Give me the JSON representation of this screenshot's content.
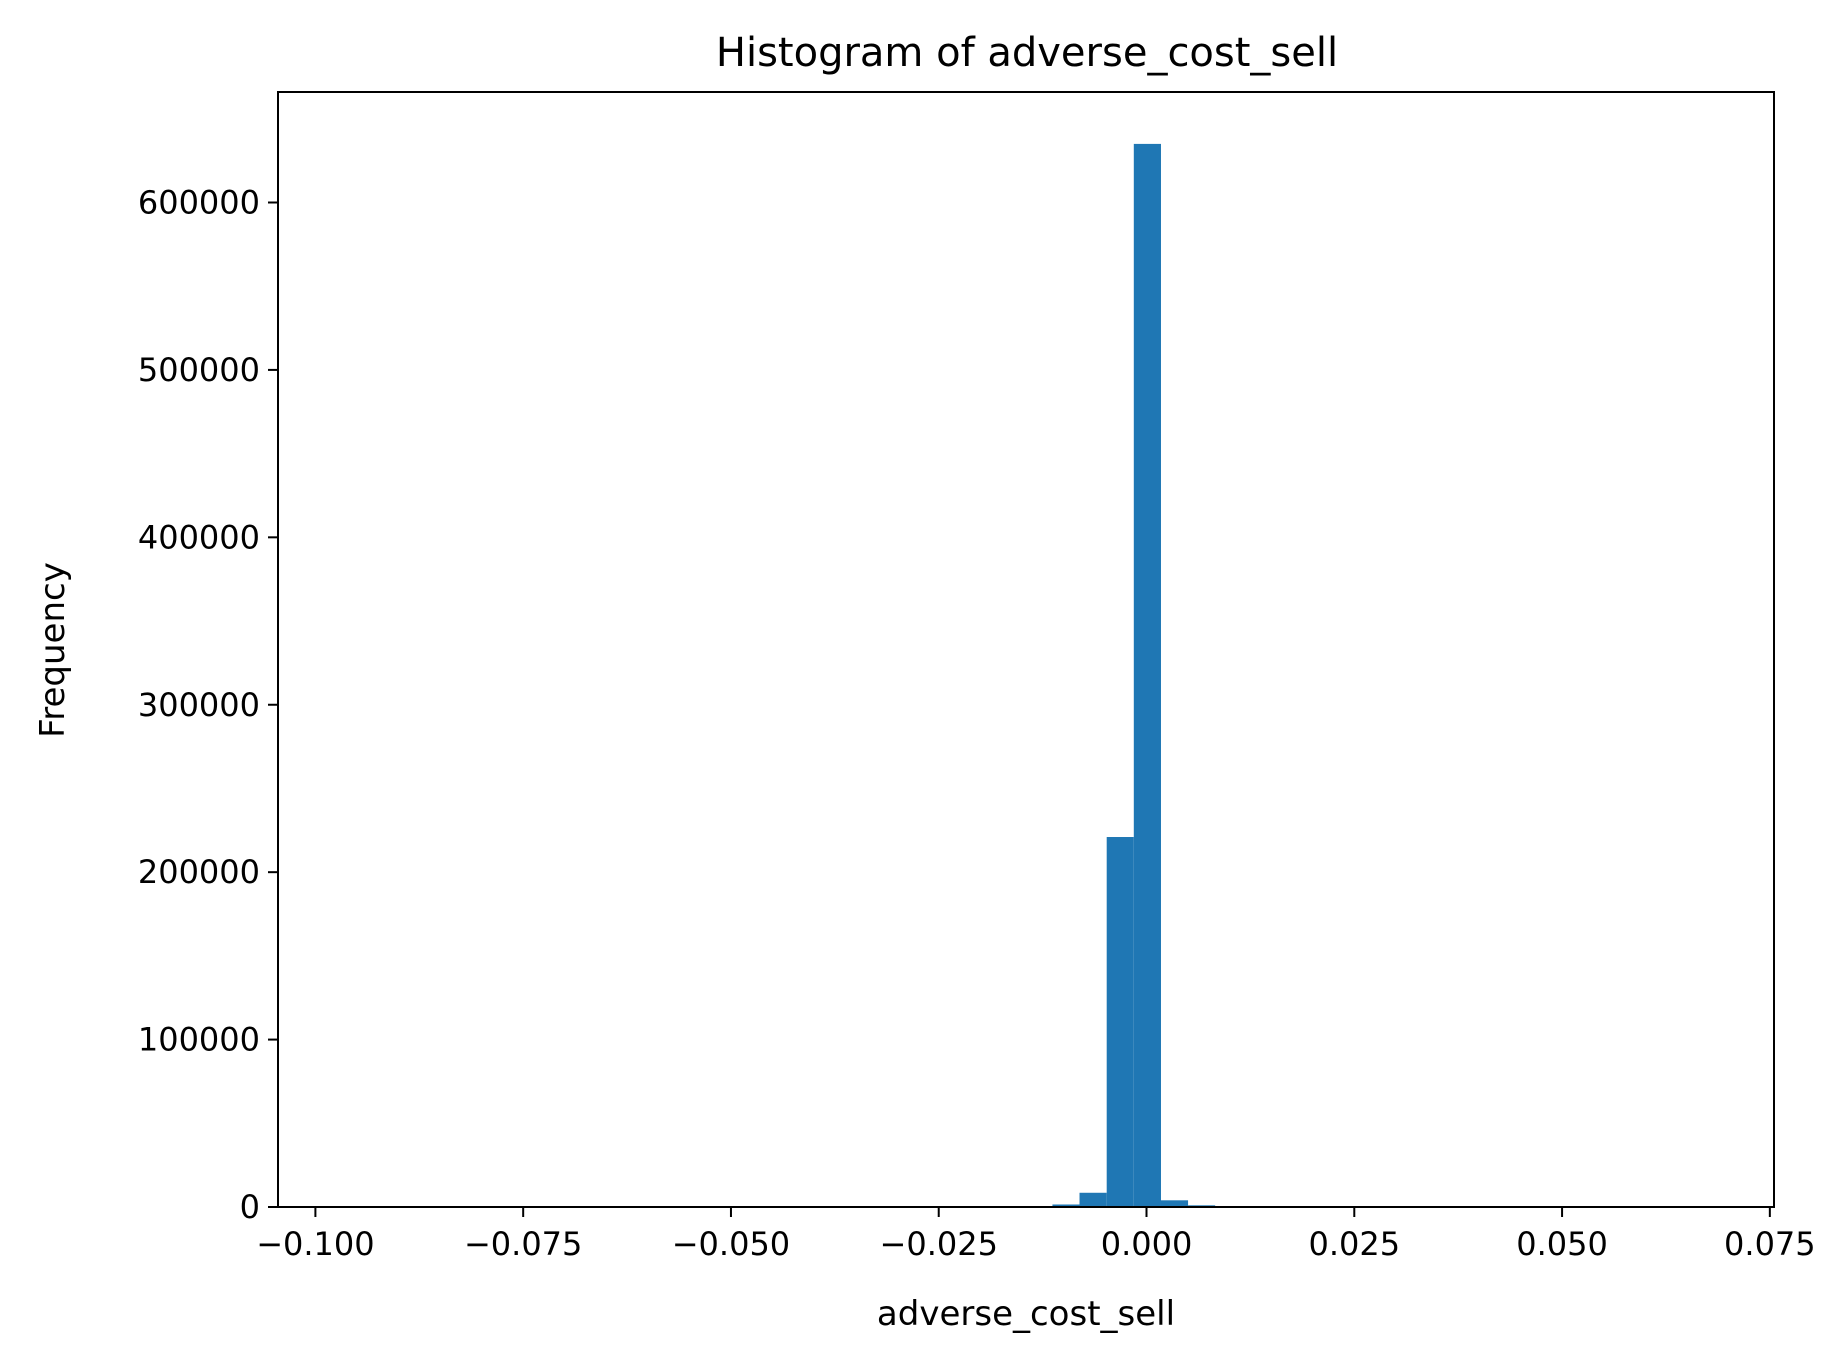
{
  "chart_data": {
    "type": "bar",
    "title": "Histogram of adverse_cost_sell",
    "xlabel": "adverse_cost_sell",
    "ylabel": "Frequency",
    "xlim": [
      -0.1045,
      0.0755
    ],
    "ylim": [
      0,
      666000
    ],
    "xticks": [
      -0.1,
      -0.075,
      -0.05,
      -0.025,
      0.0,
      0.025,
      0.05,
      0.075
    ],
    "xtick_labels": [
      "−0.100",
      "−0.075",
      "−0.050",
      "−0.025",
      "0.000",
      "0.025",
      "0.050",
      "0.075"
    ],
    "yticks": [
      0,
      100000,
      200000,
      300000,
      400000,
      500000,
      600000
    ],
    "ytick_labels": [
      "0",
      "100000",
      "200000",
      "300000",
      "400000",
      "500000",
      "600000"
    ],
    "bin_width": 0.003263,
    "bins": [
      {
        "x0": -0.01132,
        "x1": -0.00806,
        "value": 1500
      },
      {
        "x0": -0.00806,
        "x1": -0.00479,
        "value": 8500
      },
      {
        "x0": -0.00479,
        "x1": -0.00153,
        "value": 221000
      },
      {
        "x0": -0.00153,
        "x1": 0.00174,
        "value": 635000
      },
      {
        "x0": 0.00174,
        "x1": 0.005,
        "value": 4000
      },
      {
        "x0": 0.005,
        "x1": 0.00826,
        "value": 1000
      }
    ],
    "bar_color": "#1f77b4",
    "grid": false
  }
}
